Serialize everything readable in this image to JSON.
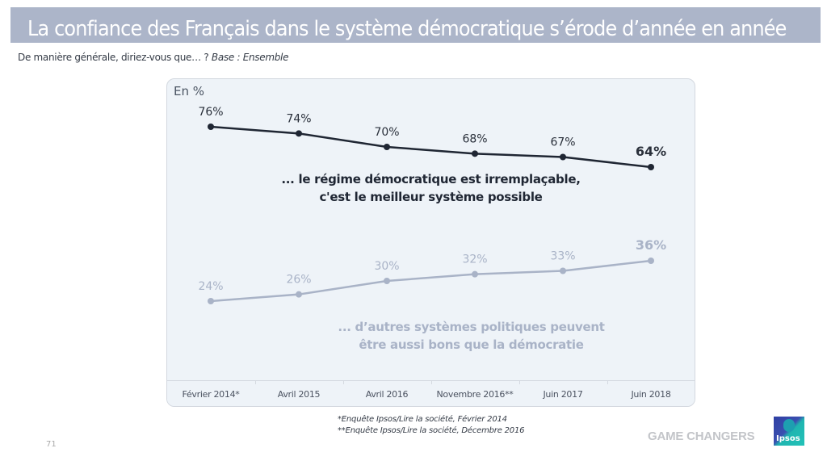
{
  "header": {
    "title": "La confiance des Français dans le système démocratique s’érode d’année en année",
    "question": "De manière générale, diriez-vous que… ? ",
    "base": "Base : Ensemble"
  },
  "chart_data": {
    "type": "line",
    "title": "La confiance des Français dans le système démocratique s’érode d’année en année",
    "unit_label": "En %",
    "xlabel": "",
    "ylabel": "En %",
    "categories": [
      "Février 2014*",
      "Avril 2015",
      "Avril 2016",
      "Novembre 2016**",
      "Juin 2017",
      "Juin 2018"
    ],
    "ylim": [
      0,
      100
    ],
    "grid": false,
    "series": [
      {
        "name": "... le régime démocratique est irremplaçable, c'est le meilleur système possible",
        "values": [
          76,
          74,
          70,
          68,
          67,
          64
        ],
        "labels": [
          "76%",
          "74%",
          "70%",
          "68%",
          "67%",
          "64%"
        ],
        "color": "#1f2633",
        "caption_lines": [
          "... le régime démocratique est irremplaçable,",
          "c'est le meilleur système possible"
        ]
      },
      {
        "name": "... d’autres systèmes politiques peuvent être aussi bons que la démocratie",
        "values": [
          24,
          26,
          30,
          32,
          33,
          36
        ],
        "labels": [
          "24%",
          "26%",
          "30%",
          "32%",
          "33%",
          "36%"
        ],
        "color": "#a9b3c7",
        "caption_lines": [
          "... d’autres systèmes politiques peuvent",
          "être aussi bons que la démocratie"
        ]
      }
    ]
  },
  "footnotes": [
    "*Enquête Ipsos/Lire la société, Février 2014",
    "**Enquête Ipsos/Lire la société, Décembre 2016"
  ],
  "footer": {
    "page_number": "71",
    "brand_tagline": "GAME CHANGERS",
    "logo_text": "Ipsos"
  }
}
